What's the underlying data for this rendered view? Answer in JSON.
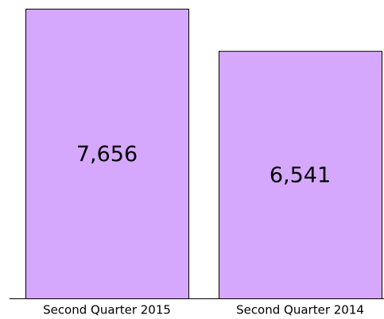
{
  "chart_data": {
    "type": "bar",
    "categories": [
      "Second Quarter 2015",
      "Second Quarter 2014"
    ],
    "values": [
      7656,
      6541
    ],
    "value_labels": [
      "7,656",
      "6,541"
    ],
    "color": "#d5a8fd"
  }
}
